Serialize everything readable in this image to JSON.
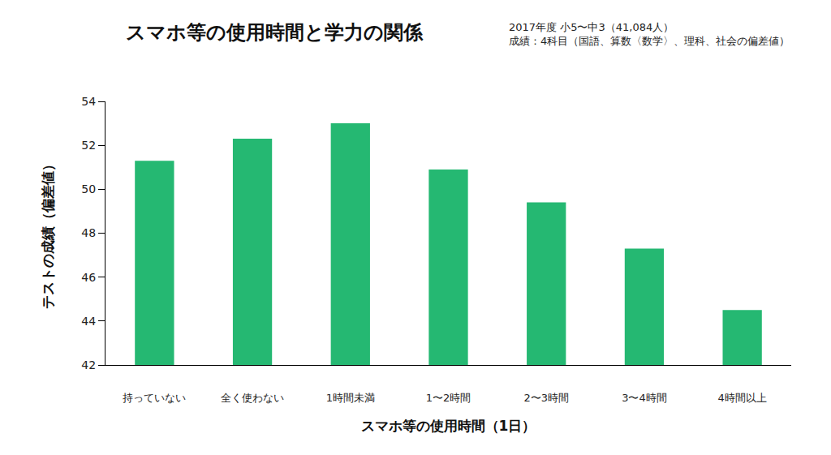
{
  "chart_data": {
    "type": "bar",
    "title": "スマホ等の使用時間と学力の関係",
    "subtitle": [
      "2017年度 小5〜中3（41,084人）",
      "成績：4科目（国語、算数〈数学〉、理科、社会の偏差値）"
    ],
    "x_label": "スマホ等の使用時間（1日）",
    "y_label": "テストの成績（偏差値）",
    "categories": [
      "持っていない",
      "全く使わない",
      "1時間未満",
      "1〜2時間",
      "2〜3時間",
      "3〜4時間",
      "4時間以上"
    ],
    "values": [
      51.3,
      52.3,
      53.0,
      50.9,
      49.4,
      47.3,
      44.5
    ],
    "color": "#25b872",
    "ylim": [
      42,
      54
    ],
    "yticks": [
      42,
      44,
      46,
      48,
      50,
      52,
      54
    ],
    "grid": false
  }
}
